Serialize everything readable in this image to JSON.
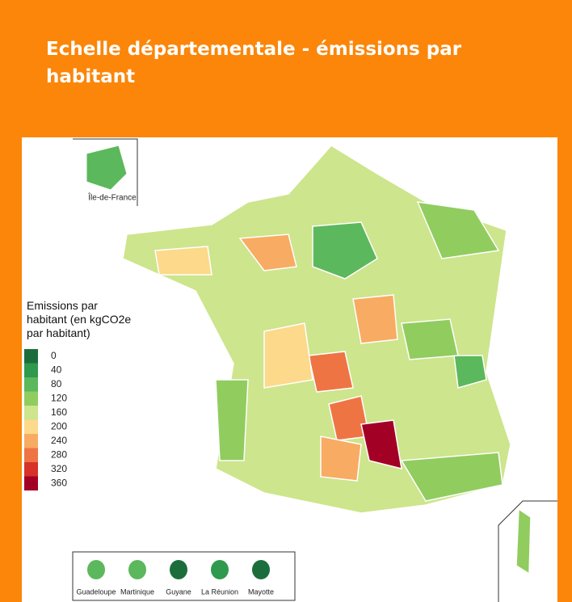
{
  "header": {
    "title": "Echelle départementale - émissions par habitant"
  },
  "map": {
    "inset_label": "Île-de-France",
    "legend": {
      "title": "Emissions par habitant (en kgCO2e par habitant)",
      "values": [
        0,
        40,
        80,
        120,
        160,
        200,
        240,
        280,
        320,
        360
      ],
      "colors": [
        "#1b6e3c",
        "#2f9a4e",
        "#5cb85c",
        "#91cc5f",
        "#cde58c",
        "#fcd98b",
        "#f8ab62",
        "#ef7444",
        "#d6322a",
        "#a30026"
      ]
    },
    "territories": [
      "Guadeloupe",
      "Martinique",
      "Guyane",
      "La Réunion",
      "Mayotte"
    ]
  }
}
